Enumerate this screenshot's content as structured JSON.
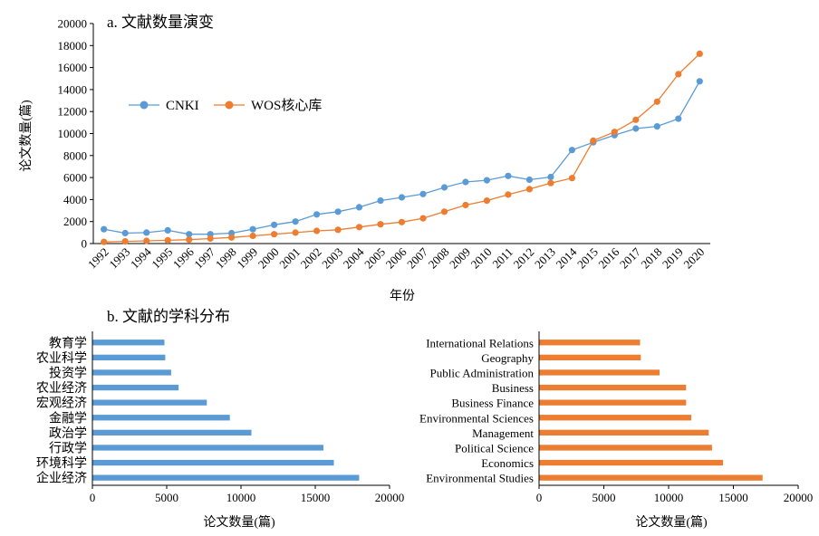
{
  "colors": {
    "blue": "#5B9BD5",
    "orange": "#ED7D31",
    "axis": "#000000"
  },
  "chart_data": [
    {
      "type": "line",
      "title": "a. 文献数量演变",
      "xlabel": "年份",
      "ylabel": "论文数量(篇)",
      "x": [
        "1992",
        "1993",
        "1994",
        "1995",
        "1996",
        "1997",
        "1998",
        "1999",
        "2000",
        "2001",
        "2002",
        "2003",
        "2004",
        "2005",
        "2006",
        "2007",
        "2008",
        "2009",
        "2010",
        "2011",
        "2012",
        "2013",
        "2014",
        "2015",
        "2016",
        "2017",
        "2018",
        "2019",
        "2020"
      ],
      "ylim": [
        0,
        20000
      ],
      "yticks": [
        "0",
        "2000",
        "4000",
        "6000",
        "8000",
        "10000",
        "12000",
        "14000",
        "16000",
        "18000",
        "20000"
      ],
      "legend_position": "left",
      "series": [
        {
          "name": "CNKI",
          "color": "#5B9BD5",
          "values": [
            1300,
            950,
            1000,
            1200,
            850,
            850,
            950,
            1300,
            1700,
            2000,
            2650,
            2900,
            3300,
            3900,
            4200,
            4500,
            5100,
            5600,
            5750,
            6150,
            5800,
            6050,
            8500,
            9200,
            9850,
            10450,
            10650,
            11350,
            14750
          ]
        },
        {
          "name": "WOS核心库",
          "color": "#ED7D31",
          "values": [
            150,
            200,
            250,
            300,
            350,
            450,
            550,
            700,
            850,
            1000,
            1150,
            1250,
            1500,
            1750,
            1950,
            2300,
            2900,
            3500,
            3900,
            4450,
            4950,
            5500,
            5950,
            9350,
            10150,
            11250,
            12900,
            15400,
            17250
          ]
        }
      ]
    },
    {
      "type": "bar",
      "orientation": "horizontal",
      "title": "b. 文献的学科分布",
      "xlabel": "论文数量(篇)",
      "xlim": [
        0,
        20000
      ],
      "xticks": [
        "0",
        "5000",
        "10000",
        "15000",
        "20000"
      ],
      "color": "#5B9BD5",
      "categories": [
        "教育学",
        "农业科学",
        "投资学",
        "农业经济",
        "宏观经济",
        "金融学",
        "政治学",
        "行政学",
        "环境科学",
        "企业经济"
      ],
      "values": [
        4850,
        4900,
        5300,
        5800,
        7700,
        9250,
        10700,
        15550,
        16250,
        17950
      ]
    },
    {
      "type": "bar",
      "orientation": "horizontal",
      "xlabel": "论文数量(篇)",
      "xlim": [
        0,
        20000
      ],
      "xticks": [
        "0",
        "5000",
        "10000",
        "15000",
        "20000"
      ],
      "color": "#ED7D31",
      "categories": [
        "International Relations",
        "Geography",
        "Public Administration",
        "Business",
        "Business Finance",
        "Environmental Sciences",
        "Management",
        "Political Science",
        "Economics",
        "Environmental Studies"
      ],
      "values": [
        7800,
        7850,
        9300,
        11350,
        11350,
        11750,
        13100,
        13350,
        14200,
        17250
      ]
    }
  ]
}
